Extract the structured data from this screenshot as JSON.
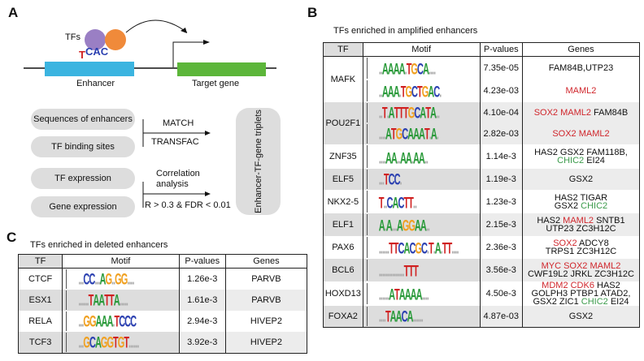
{
  "panelA": {
    "label": "A",
    "tfs": "TFs",
    "enhancer": "Enhancer",
    "target": "Target gene",
    "logo_text": "TCAC",
    "inputs": [
      "Sequences of enhancers",
      "TF binding sites",
      "TF expression",
      "Gene expression"
    ],
    "match": "MATCH",
    "transfac": "TRANSFAC",
    "correlation": "Correlation analysis",
    "threshold": "R > 0.3 & FDR < 0.01",
    "output": "Enhancer-TF-gene triplets",
    "colors": {
      "enhancer": "#3bb4e0",
      "gene": "#5cb63a",
      "tf1": "#9a7fc4",
      "tf2": "#f08a3a"
    }
  },
  "panelB": {
    "label": "B",
    "title": "TFs enriched in amplified enhancers",
    "headers": [
      "TF",
      "Motif",
      "P-values",
      "Genes"
    ],
    "rows": [
      {
        "tf": "MAFK",
        "gray": false,
        "sub": [
          {
            "motif": "..AAAA.TGCA....",
            "p": "7.35e-05",
            "genes": [
              [
                [
                  "FAM84B,UTP23",
                  "k"
                ]
              ]
            ]
          },
          {
            "motif": "..AAA.TGCTGAC.",
            "p": "4.23e-03",
            "genes": [
              [
                [
                  "MAML2",
                  "r"
                ]
              ]
            ]
          }
        ]
      },
      {
        "tf": "POU2F1",
        "gray": true,
        "sub": [
          {
            "motif": "..T.ATTTGCATA..",
            "p": "4.10e-04",
            "genes": [
              [
                [
                  "SOX2 MAML2",
                  "r"
                ],
                [
                  " FAM84B",
                  "k"
                ]
              ]
            ]
          },
          {
            "motif": "....ATGCAAAT.A.",
            "p": "2.82e-03",
            "genes": [
              [
                [
                  "SOX2 MAML2",
                  "r"
                ]
              ]
            ]
          }
        ]
      },
      {
        "tf": "ZNF35",
        "gray": false,
        "sub": [
          {
            "motif": "....AA..AA.AA..",
            "p": "1.14e-3",
            "genes": [
              [
                [
                  "HAS2 GSX2 FAM118B,",
                  "k"
                ]
              ],
              [
                [
                  "CHIC2",
                  "g"
                ],
                [
                  " EI24",
                  "k"
                ]
              ]
            ]
          }
        ]
      },
      {
        "tf": "ELF5",
        "gray": true,
        "sub": [
          {
            "motif": "...TCC.",
            "p": "1.19e-3",
            "genes": [
              [
                [
                  "GSX2",
                  "k"
                ]
              ]
            ]
          }
        ]
      },
      {
        "tf": "NKX2-5",
        "gray": false,
        "sub": [
          {
            "motif": "T..CACTT..",
            "p": "1.23e-3",
            "genes": [
              [
                [
                  "HAS2 TIGAR",
                  "k"
                ]
              ],
              [
                [
                  "GSX2 ",
                  "k"
                ],
                [
                  "CHIC2",
                  "g"
                ]
              ]
            ]
          }
        ]
      },
      {
        "tf": "ELF1",
        "gray": true,
        "sub": [
          {
            "motif": "A.A...AGGAA..",
            "p": "2.15e-3",
            "genes": [
              [
                [
                  "HAS2 ",
                  "k"
                ],
                [
                  "MAML2",
                  "r"
                ],
                [
                  " SNTB1",
                  "k"
                ]
              ],
              [
                [
                  "UTP23 ZC3H12C",
                  "k"
                ]
              ]
            ]
          }
        ]
      },
      {
        "tf": "PAX6",
        "gray": false,
        "sub": [
          {
            "motif": "......TTCACGC.T.A.TT....",
            "p": "2.36e-3",
            "genes": [
              [
                [
                  "SOX2",
                  "r"
                ],
                [
                  " ADCY8",
                  "k"
                ]
              ],
              [
                [
                  "TRPS1 ZC3H12C",
                  "k"
                ]
              ]
            ]
          }
        ]
      },
      {
        "tf": "BCL6",
        "gray": true,
        "sub": [
          {
            "motif": "...............TTT",
            "p": "3.56e-3",
            "genes": [
              [
                [
                  "MYC SOX2 MAML2",
                  "r"
                ]
              ],
              [
                [
                  "CWF19L2 JRKL ZC3H12C",
                  "k"
                ]
              ]
            ]
          }
        ]
      },
      {
        "tf": "HOXD13",
        "gray": false,
        "sub": [
          {
            "motif": "......ATAAAA....",
            "p": "4.50e-3",
            "genes": [
              [
                [
                  "MDM2 CDK6",
                  "r"
                ],
                [
                  " HAS2",
                  "k"
                ]
              ],
              [
                [
                  "GOLPH3 PTBP1 ATAD2,",
                  "k"
                ]
              ],
              [
                [
                  "GSX2 ZIC1 ",
                  "k"
                ],
                [
                  "CHIC2",
                  "g"
                ],
                [
                  " EI24",
                  "k"
                ]
              ]
            ]
          }
        ]
      },
      {
        "tf": "FOXA2",
        "gray": true,
        "sub": [
          {
            "motif": "....TAACA......",
            "p": "4.87e-03",
            "genes": [
              [
                [
                  "GSX2",
                  "k"
                ]
              ]
            ]
          }
        ]
      }
    ]
  },
  "panelC": {
    "label": "C",
    "title": "TFs enriched in deleted enhancers",
    "headers": [
      "TF",
      "Motif",
      "P-values",
      "Genes"
    ],
    "rows": [
      {
        "tf": "CTCF",
        "gray": false,
        "motif": "...CC...AG..GG....",
        "p": "1.26e-3",
        "genes": "PARVB"
      },
      {
        "tf": "ESX1",
        "gray": true,
        "motif": "......TAATTA.....",
        "p": "1.61e-3",
        "genes": "PARVB"
      },
      {
        "tf": "RELA",
        "gray": false,
        "motif": "...GGAAA.TCCC",
        "p": "2.94e-3",
        "genes": "HIVEP2"
      },
      {
        "tf": "TCF3",
        "gray": true,
        "motif": "...GCAGGTGT......",
        "p": "3.92e-3",
        "genes": "HIVEP2"
      }
    ]
  }
}
